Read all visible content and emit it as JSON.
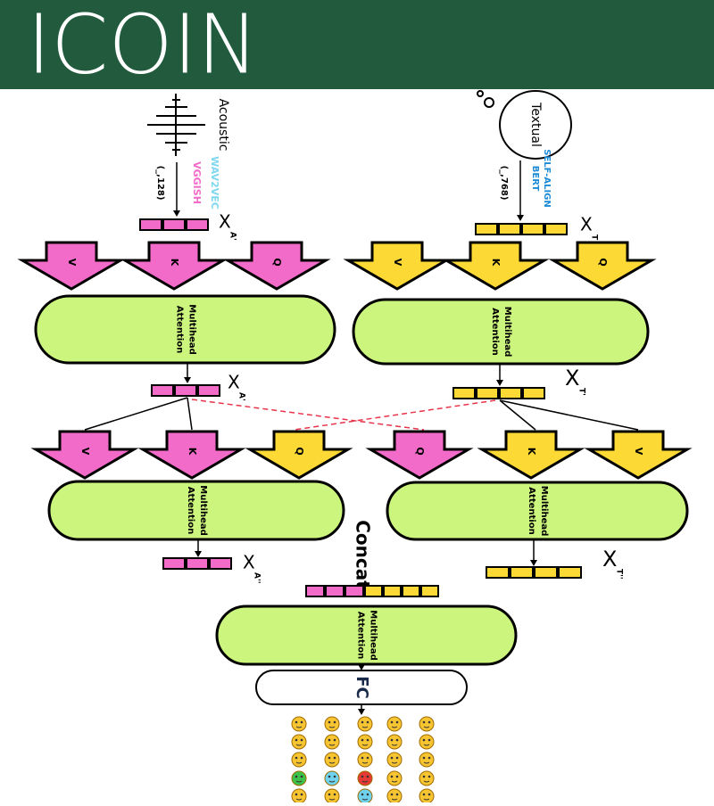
{
  "header": {
    "title": "ICOIN"
  },
  "acoustic": {
    "label": "Acoustic",
    "encoders": [
      "WAV2VEC",
      "VGGISH"
    ],
    "shape": "(_,128)",
    "x_label": "X",
    "x_sup": "A'"
  },
  "textual": {
    "label": "Textual",
    "encoders": [
      "SELF-ALIGN",
      "BERT"
    ],
    "shape": "(_,768)",
    "x_label": "X",
    "x_sup": "T"
  },
  "row1_arrows": [
    "V",
    "K",
    "Q",
    "V",
    "K",
    "Q"
  ],
  "row1_blocks": [
    {
      "line1": "Multihead",
      "line2": "Attention"
    },
    {
      "line1": "Multihead",
      "line2": "Attention"
    }
  ],
  "mid_outputs": [
    {
      "x_label": "X",
      "x_sup": "A'"
    },
    {
      "x_label": "X",
      "x_sup": "T'"
    }
  ],
  "row2_arrows": [
    "V",
    "K",
    "Q",
    "Q",
    "K",
    "V"
  ],
  "row2_blocks": [
    {
      "line1": "Multihead",
      "line2": "Attention"
    },
    {
      "line1": "Multihead",
      "line2": "Attention"
    }
  ],
  "final_outputs": [
    {
      "x_label": "X",
      "x_sup": "A''"
    },
    {
      "x_label": "X",
      "x_sup": "T''"
    }
  ],
  "concat": "Concat",
  "final_block": {
    "line1": "Multihead",
    "line2": "Attention"
  },
  "fc": "FC"
}
